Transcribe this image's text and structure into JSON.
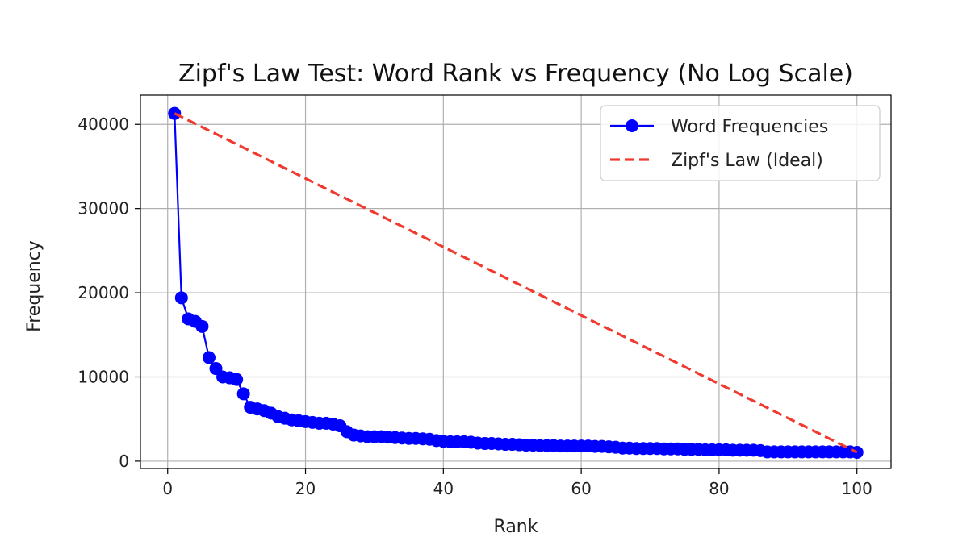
{
  "chart_data": {
    "type": "line",
    "title": "Zipf's Law Test: Word Rank vs Frequency (No Log Scale)",
    "xlabel": "Rank",
    "ylabel": "Frequency",
    "xlim": [
      -3.95,
      104.95
    ],
    "ylim": [
      -870,
      43470
    ],
    "xticks": [
      0,
      20,
      40,
      60,
      80,
      100
    ],
    "yticks": [
      0,
      10000,
      20000,
      30000,
      40000
    ],
    "grid": true,
    "legend_position": "top-right",
    "series": [
      {
        "name": "Word Frequencies",
        "style": "solid line with circle markers",
        "color": "#0000ff",
        "x": [
          1,
          2,
          3,
          4,
          5,
          6,
          7,
          8,
          9,
          10,
          11,
          12,
          13,
          14,
          15,
          16,
          17,
          18,
          19,
          20,
          21,
          22,
          23,
          24,
          25,
          26,
          27,
          28,
          29,
          30,
          31,
          32,
          33,
          34,
          35,
          36,
          37,
          38,
          39,
          40,
          41,
          42,
          43,
          44,
          45,
          46,
          47,
          48,
          49,
          50,
          51,
          52,
          53,
          54,
          55,
          56,
          57,
          58,
          59,
          60,
          61,
          62,
          63,
          64,
          65,
          66,
          67,
          68,
          69,
          70,
          71,
          72,
          73,
          74,
          75,
          76,
          77,
          78,
          79,
          80,
          81,
          82,
          83,
          84,
          85,
          86,
          87,
          88,
          89,
          90,
          91,
          92,
          93,
          94,
          95,
          96,
          97,
          98,
          99,
          100
        ],
        "y": [
          41300,
          19400,
          16900,
          16600,
          16000,
          12300,
          11000,
          10000,
          9900,
          9700,
          8000,
          6400,
          6200,
          6000,
          5700,
          5300,
          5100,
          4900,
          4800,
          4700,
          4600,
          4500,
          4500,
          4400,
          4200,
          3500,
          3100,
          3000,
          2900,
          2900,
          2900,
          2850,
          2800,
          2750,
          2700,
          2700,
          2650,
          2600,
          2450,
          2350,
          2300,
          2300,
          2300,
          2250,
          2150,
          2100,
          2100,
          2050,
          2000,
          2000,
          1950,
          1900,
          1900,
          1850,
          1850,
          1850,
          1800,
          1800,
          1800,
          1800,
          1800,
          1750,
          1750,
          1700,
          1650,
          1550,
          1550,
          1500,
          1500,
          1500,
          1500,
          1450,
          1450,
          1450,
          1400,
          1400,
          1400,
          1350,
          1350,
          1350,
          1350,
          1300,
          1300,
          1300,
          1300,
          1250,
          1100,
          1100,
          1100,
          1100,
          1100,
          1100,
          1100,
          1100,
          1100,
          1100,
          1100,
          1100,
          1100,
          1050
        ]
      },
      {
        "name": "Zipf's Law (Ideal)",
        "style": "dashed line",
        "color": "#f03a30",
        "x": [
          1,
          100
        ],
        "y": [
          41300,
          1050
        ]
      }
    ]
  }
}
